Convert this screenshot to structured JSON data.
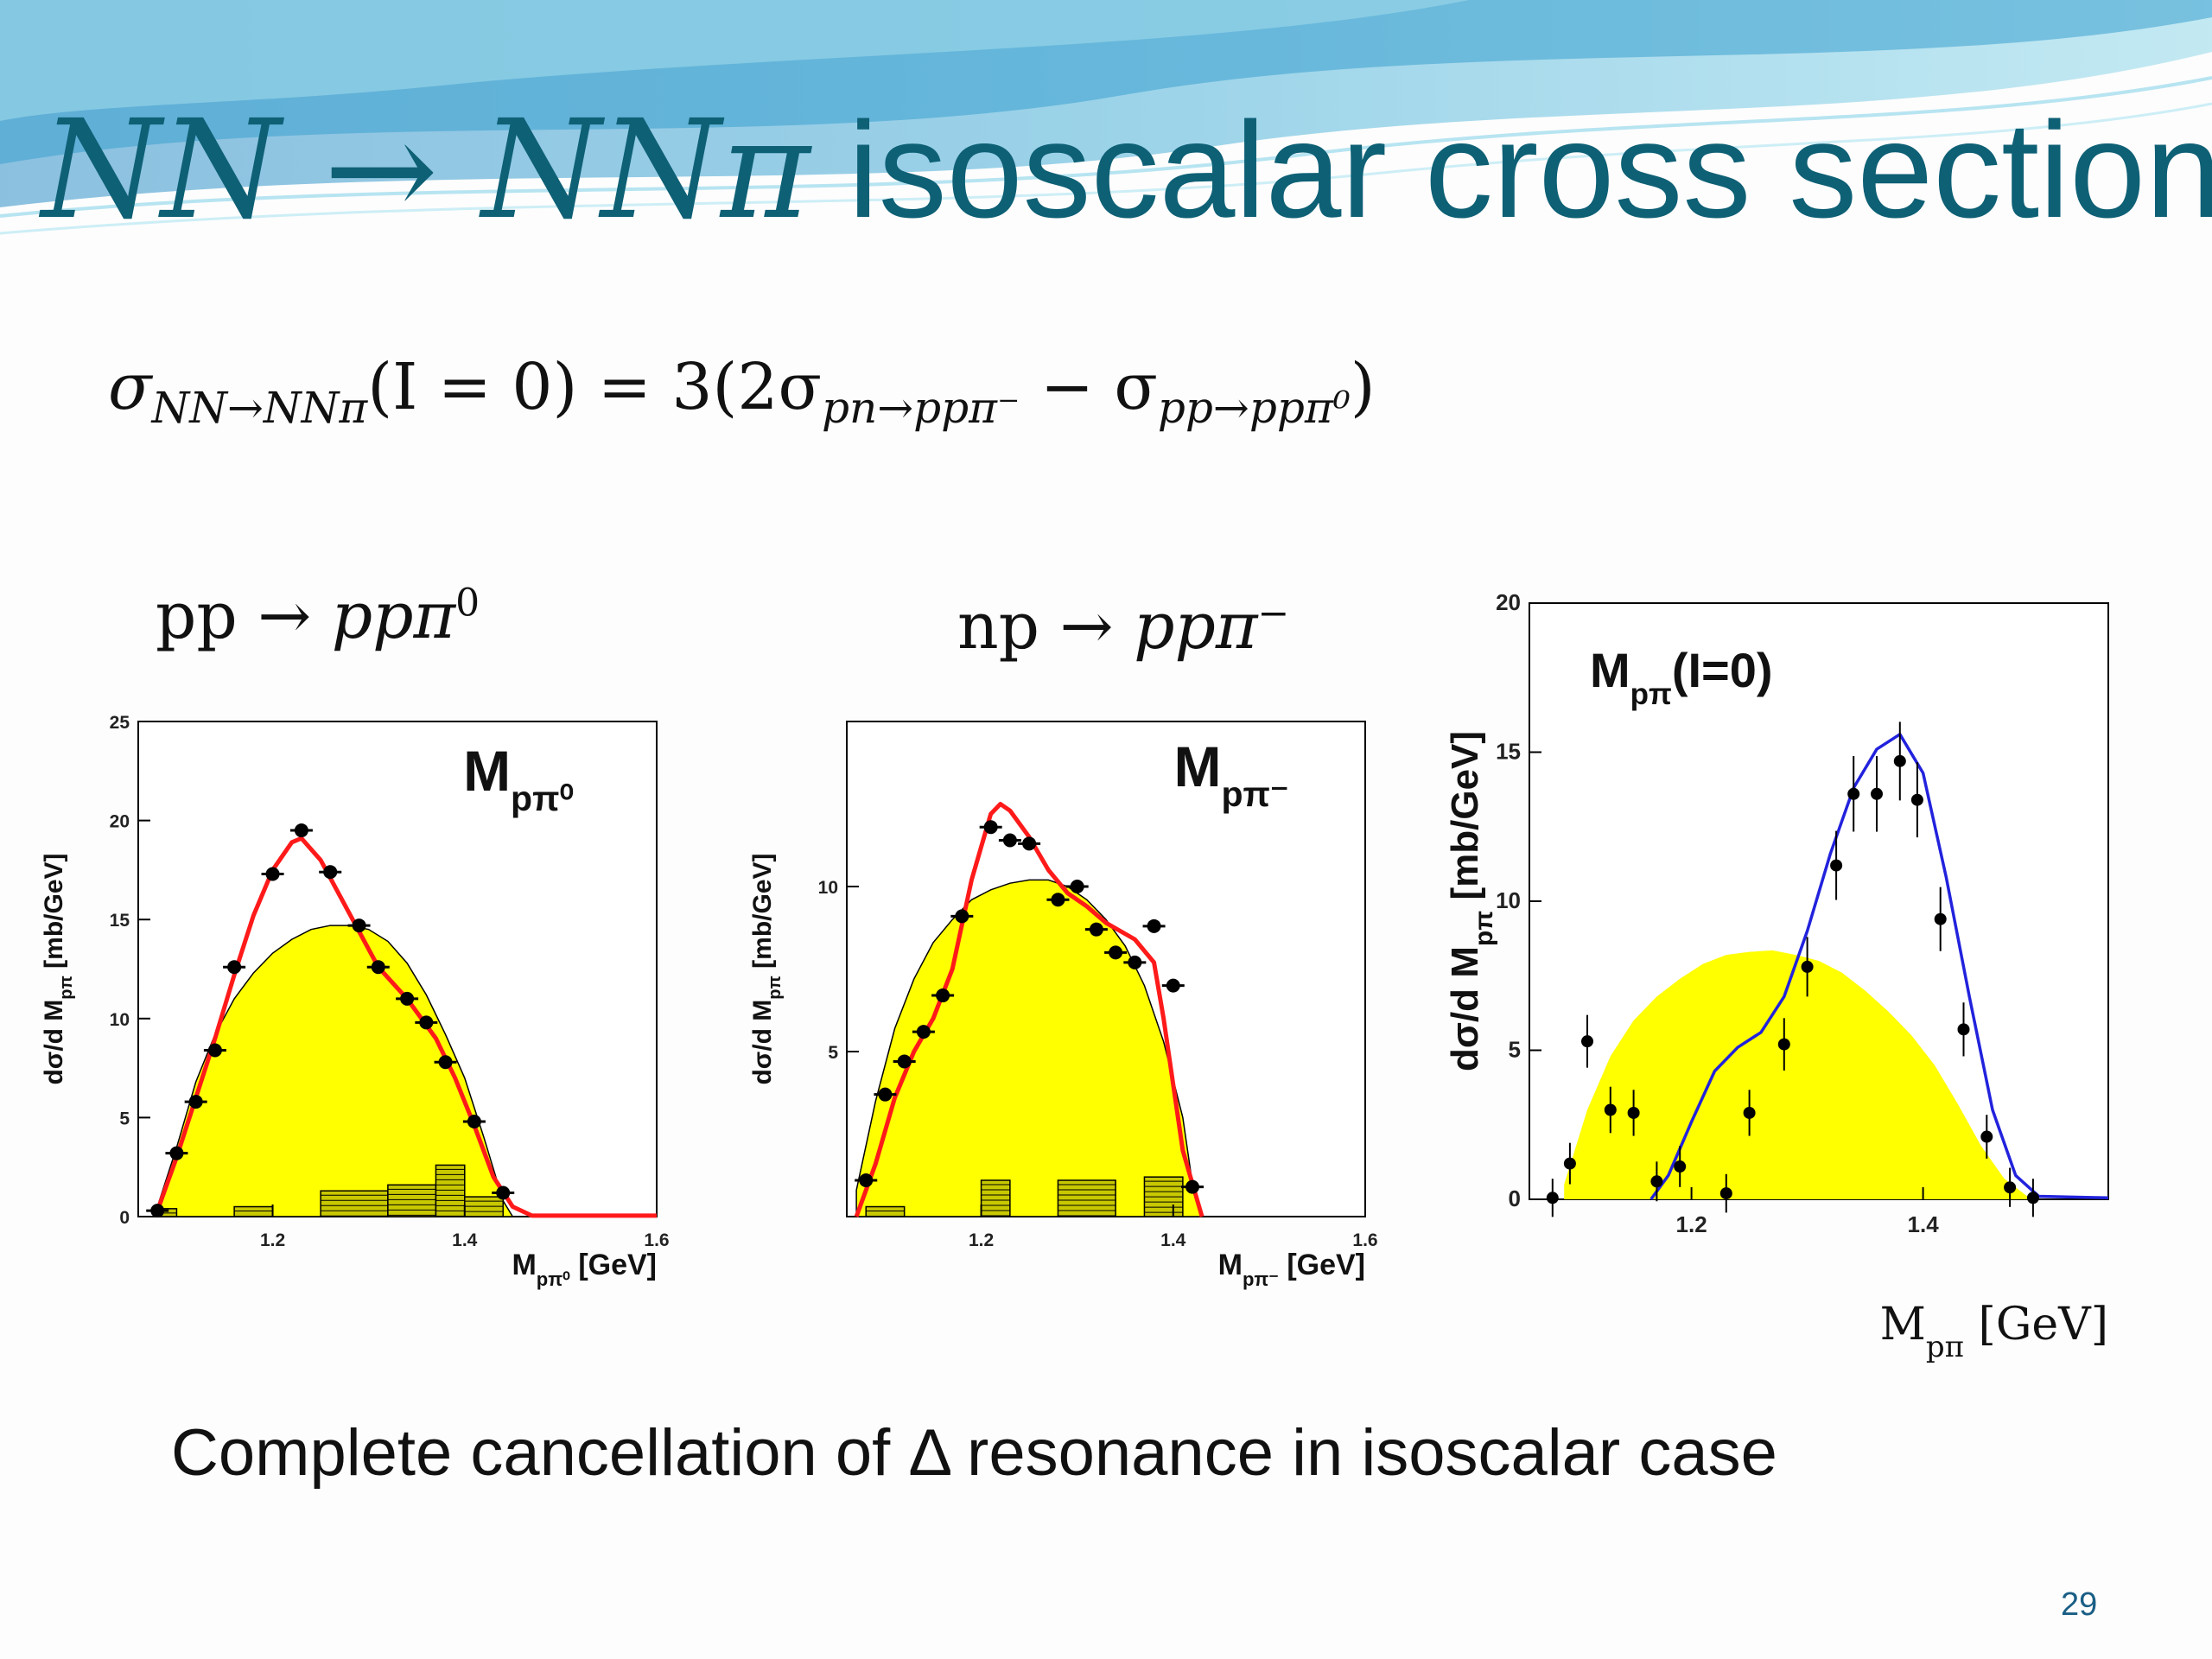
{
  "slide": {
    "title_math": "NN → NNπ",
    "title_text": " isoscalar cross section",
    "formula": {
      "sigma1": "σ",
      "sub1": "NN→NNπ",
      "mid": "(I = 0) = 3(2σ",
      "sub2": "pn→ppπ⁻",
      "minus": " − σ",
      "sub3": "pp→ppπ⁰",
      "close": ")"
    },
    "process1": {
      "base": "pp → ",
      "italic": "ppπ",
      "sup": "0"
    },
    "process2": {
      "base": "np → ",
      "italic": "ppπ",
      "sup": "−"
    },
    "footnote": "Complete cancellation of Δ resonance in isoscalar case",
    "page_number": "29"
  },
  "colors": {
    "yellow_fill": "#ffff00",
    "red_curve": "#ff1a1a",
    "blue_curve": "#2222dd",
    "title": "#0e6075"
  },
  "chart_data": [
    {
      "type": "scatter",
      "panel_label": "M",
      "panel_label_sub": "pπ⁰",
      "ylabel": "dσ/d M",
      "ylabel_sub": "pπ",
      "ylabel_unit": " [mb/GeV]",
      "xlabel": "M",
      "xlabel_sub": "pπ⁰",
      "xlabel_unit": " [GeV]",
      "xlim": [
        1.06,
        1.6
      ],
      "ylim": [
        0,
        25
      ],
      "xticks": [
        {
          "v": 1.2,
          "label": "1.2"
        },
        {
          "v": 1.4,
          "label": "1.4"
        },
        {
          "v": 1.6,
          "label": "1.6"
        }
      ],
      "yticks": [
        {
          "v": 0,
          "label": "0"
        },
        {
          "v": 5,
          "label": "5"
        },
        {
          "v": 10,
          "label": "10"
        },
        {
          "v": 15,
          "label": "15"
        },
        {
          "v": 20,
          "label": "20"
        },
        {
          "v": 25,
          "label": "25"
        }
      ],
      "points": [
        [
          1.08,
          0.3
        ],
        [
          1.1,
          3.2
        ],
        [
          1.12,
          5.8
        ],
        [
          1.14,
          8.4
        ],
        [
          1.16,
          12.6
        ],
        [
          1.2,
          17.3
        ],
        [
          1.23,
          19.5
        ],
        [
          1.26,
          17.4
        ],
        [
          1.29,
          14.7
        ],
        [
          1.31,
          12.6
        ],
        [
          1.34,
          11.0
        ],
        [
          1.36,
          9.8
        ],
        [
          1.38,
          7.8
        ],
        [
          1.41,
          4.8
        ],
        [
          1.44,
          1.2
        ]
      ],
      "model_curve": [
        [
          1.08,
          0.3
        ],
        [
          1.1,
          3.0
        ],
        [
          1.12,
          6.0
        ],
        [
          1.14,
          9.0
        ],
        [
          1.16,
          12.2
        ],
        [
          1.18,
          15.2
        ],
        [
          1.2,
          17.5
        ],
        [
          1.22,
          18.9
        ],
        [
          1.23,
          19.1
        ],
        [
          1.25,
          18.0
        ],
        [
          1.27,
          16.2
        ],
        [
          1.29,
          14.4
        ],
        [
          1.31,
          12.6
        ],
        [
          1.34,
          11.0
        ],
        [
          1.37,
          9.0
        ],
        [
          1.39,
          7.0
        ],
        [
          1.41,
          4.6
        ],
        [
          1.43,
          2.0
        ],
        [
          1.45,
          0.5
        ],
        [
          1.47,
          0.05
        ],
        [
          1.6,
          0.05
        ]
      ],
      "phase_space": [
        [
          1.08,
          0.5
        ],
        [
          1.1,
          3.5
        ],
        [
          1.12,
          6.8
        ],
        [
          1.14,
          9.2
        ],
        [
          1.16,
          11.0
        ],
        [
          1.18,
          12.3
        ],
        [
          1.2,
          13.3
        ],
        [
          1.22,
          14.0
        ],
        [
          1.24,
          14.5
        ],
        [
          1.26,
          14.7
        ],
        [
          1.28,
          14.7
        ],
        [
          1.3,
          14.5
        ],
        [
          1.32,
          13.9
        ],
        [
          1.34,
          12.8
        ],
        [
          1.36,
          11.2
        ],
        [
          1.38,
          9.2
        ],
        [
          1.4,
          7.0
        ],
        [
          1.42,
          4.0
        ],
        [
          1.44,
          0.8
        ],
        [
          1.45,
          0
        ]
      ],
      "background_bins": [
        [
          1.08,
          1.1,
          0.4
        ],
        [
          1.16,
          1.2,
          0.5
        ],
        [
          1.25,
          1.32,
          1.3
        ],
        [
          1.32,
          1.37,
          1.6
        ],
        [
          1.37,
          1.4,
          2.6
        ],
        [
          1.4,
          1.44,
          1.0
        ]
      ]
    },
    {
      "type": "scatter",
      "panel_label": "M",
      "panel_label_sub": "pπ⁻",
      "ylabel": "dσ/d M",
      "ylabel_sub": "pπ",
      "ylabel_unit": " [mb/GeV]",
      "xlabel": "M",
      "xlabel_sub": "pπ⁻",
      "xlabel_unit": " [GeV]",
      "xlim": [
        1.06,
        1.6
      ],
      "ylim": [
        0,
        15
      ],
      "xticks": [
        {
          "v": 1.2,
          "label": "1.2"
        },
        {
          "v": 1.4,
          "label": "1.4"
        },
        {
          "v": 1.6,
          "label": "1.6"
        }
      ],
      "yticks": [
        {
          "v": 5,
          "label": "5"
        },
        {
          "v": 10,
          "label": "10"
        }
      ],
      "points": [
        [
          1.08,
          1.1
        ],
        [
          1.1,
          3.7
        ],
        [
          1.12,
          4.7
        ],
        [
          1.14,
          5.6
        ],
        [
          1.16,
          6.7
        ],
        [
          1.18,
          9.1
        ],
        [
          1.21,
          11.8
        ],
        [
          1.23,
          11.4
        ],
        [
          1.25,
          11.3
        ],
        [
          1.28,
          9.6
        ],
        [
          1.3,
          10.0
        ],
        [
          1.32,
          8.7
        ],
        [
          1.34,
          8.0
        ],
        [
          1.36,
          7.7
        ],
        [
          1.38,
          8.8
        ],
        [
          1.4,
          7.0
        ],
        [
          1.42,
          0.9
        ]
      ],
      "model_curve": [
        [
          1.07,
          0
        ],
        [
          1.09,
          1.6
        ],
        [
          1.11,
          3.6
        ],
        [
          1.13,
          5.0
        ],
        [
          1.15,
          6.0
        ],
        [
          1.17,
          7.5
        ],
        [
          1.19,
          10.2
        ],
        [
          1.21,
          12.2
        ],
        [
          1.22,
          12.5
        ],
        [
          1.23,
          12.3
        ],
        [
          1.25,
          11.5
        ],
        [
          1.27,
          10.5
        ],
        [
          1.29,
          9.8
        ],
        [
          1.31,
          9.4
        ],
        [
          1.33,
          8.9
        ],
        [
          1.36,
          8.4
        ],
        [
          1.38,
          7.7
        ],
        [
          1.39,
          6.0
        ],
        [
          1.4,
          4.0
        ],
        [
          1.41,
          2.0
        ],
        [
          1.43,
          0
        ]
      ],
      "phase_space": [
        [
          1.07,
          0.8
        ],
        [
          1.09,
          3.5
        ],
        [
          1.11,
          5.7
        ],
        [
          1.13,
          7.2
        ],
        [
          1.15,
          8.3
        ],
        [
          1.17,
          9.0
        ],
        [
          1.19,
          9.6
        ],
        [
          1.21,
          9.9
        ],
        [
          1.23,
          10.1
        ],
        [
          1.25,
          10.2
        ],
        [
          1.27,
          10.2
        ],
        [
          1.29,
          10.0
        ],
        [
          1.31,
          9.6
        ],
        [
          1.33,
          9.0
        ],
        [
          1.35,
          8.2
        ],
        [
          1.37,
          7.0
        ],
        [
          1.39,
          5.3
        ],
        [
          1.41,
          3.0
        ],
        [
          1.42,
          1.0
        ],
        [
          1.43,
          0
        ]
      ],
      "background_bins": [
        [
          1.08,
          1.12,
          0.3
        ],
        [
          1.2,
          1.23,
          1.1
        ],
        [
          1.28,
          1.34,
          1.1
        ],
        [
          1.37,
          1.41,
          1.2
        ]
      ]
    },
    {
      "type": "scatter",
      "panel_label": "M",
      "panel_label_sub": "pπ",
      "panel_label_suffix": "(I=0)",
      "ylabel": "dσ/d M",
      "ylabel_sub": "pπ",
      "ylabel_unit": " [mb/GeV]",
      "xlabel": "M",
      "xlabel_sub": "pπ",
      "xlabel_unit": " [GeV]",
      "xlim": [
        1.06,
        1.56
      ],
      "ylim": [
        0,
        20
      ],
      "xticks": [
        {
          "v": 1.2,
          "label": "1.2"
        },
        {
          "v": 1.4,
          "label": "1.4"
        }
      ],
      "yticks": [
        {
          "v": 0,
          "label": "0"
        },
        {
          "v": 5,
          "label": "5"
        },
        {
          "v": 10,
          "label": "10"
        },
        {
          "v": 15,
          "label": "15"
        },
        {
          "v": 20,
          "label": "20"
        }
      ],
      "points": [
        [
          1.08,
          0.05
        ],
        [
          1.095,
          1.2
        ],
        [
          1.11,
          5.3
        ],
        [
          1.13,
          3.0
        ],
        [
          1.15,
          2.9
        ],
        [
          1.17,
          0.6
        ],
        [
          1.19,
          1.1
        ],
        [
          1.23,
          0.2
        ],
        [
          1.25,
          2.9
        ],
        [
          1.28,
          5.2
        ],
        [
          1.3,
          7.8
        ],
        [
          1.325,
          11.2
        ],
        [
          1.34,
          13.6
        ],
        [
          1.36,
          13.6
        ],
        [
          1.38,
          14.7
        ],
        [
          1.395,
          13.4
        ],
        [
          1.415,
          9.4
        ],
        [
          1.435,
          5.7
        ],
        [
          1.455,
          2.1
        ],
        [
          1.475,
          0.4
        ],
        [
          1.495,
          0.05
        ]
      ],
      "model_curve": [
        [
          1.165,
          0
        ],
        [
          1.18,
          0.8
        ],
        [
          1.2,
          2.6
        ],
        [
          1.22,
          4.3
        ],
        [
          1.24,
          5.1
        ],
        [
          1.26,
          5.6
        ],
        [
          1.28,
          6.8
        ],
        [
          1.3,
          9.0
        ],
        [
          1.32,
          11.6
        ],
        [
          1.34,
          13.8
        ],
        [
          1.36,
          15.1
        ],
        [
          1.38,
          15.6
        ],
        [
          1.4,
          14.3
        ],
        [
          1.42,
          10.8
        ],
        [
          1.44,
          6.8
        ],
        [
          1.46,
          3.0
        ],
        [
          1.48,
          0.8
        ],
        [
          1.5,
          0.1
        ],
        [
          1.56,
          0.05
        ]
      ],
      "phase_space": [
        [
          1.09,
          0.5
        ],
        [
          1.11,
          3.0
        ],
        [
          1.13,
          4.8
        ],
        [
          1.15,
          6.0
        ],
        [
          1.17,
          6.8
        ],
        [
          1.19,
          7.4
        ],
        [
          1.21,
          7.9
        ],
        [
          1.23,
          8.2
        ],
        [
          1.25,
          8.3
        ],
        [
          1.27,
          8.35
        ],
        [
          1.29,
          8.2
        ],
        [
          1.31,
          8.0
        ],
        [
          1.33,
          7.6
        ],
        [
          1.35,
          7.0
        ],
        [
          1.37,
          6.3
        ],
        [
          1.39,
          5.5
        ],
        [
          1.41,
          4.5
        ],
        [
          1.43,
          3.2
        ],
        [
          1.45,
          1.8
        ],
        [
          1.47,
          0.7
        ],
        [
          1.49,
          0.1
        ],
        [
          1.5,
          0
        ]
      ]
    }
  ]
}
